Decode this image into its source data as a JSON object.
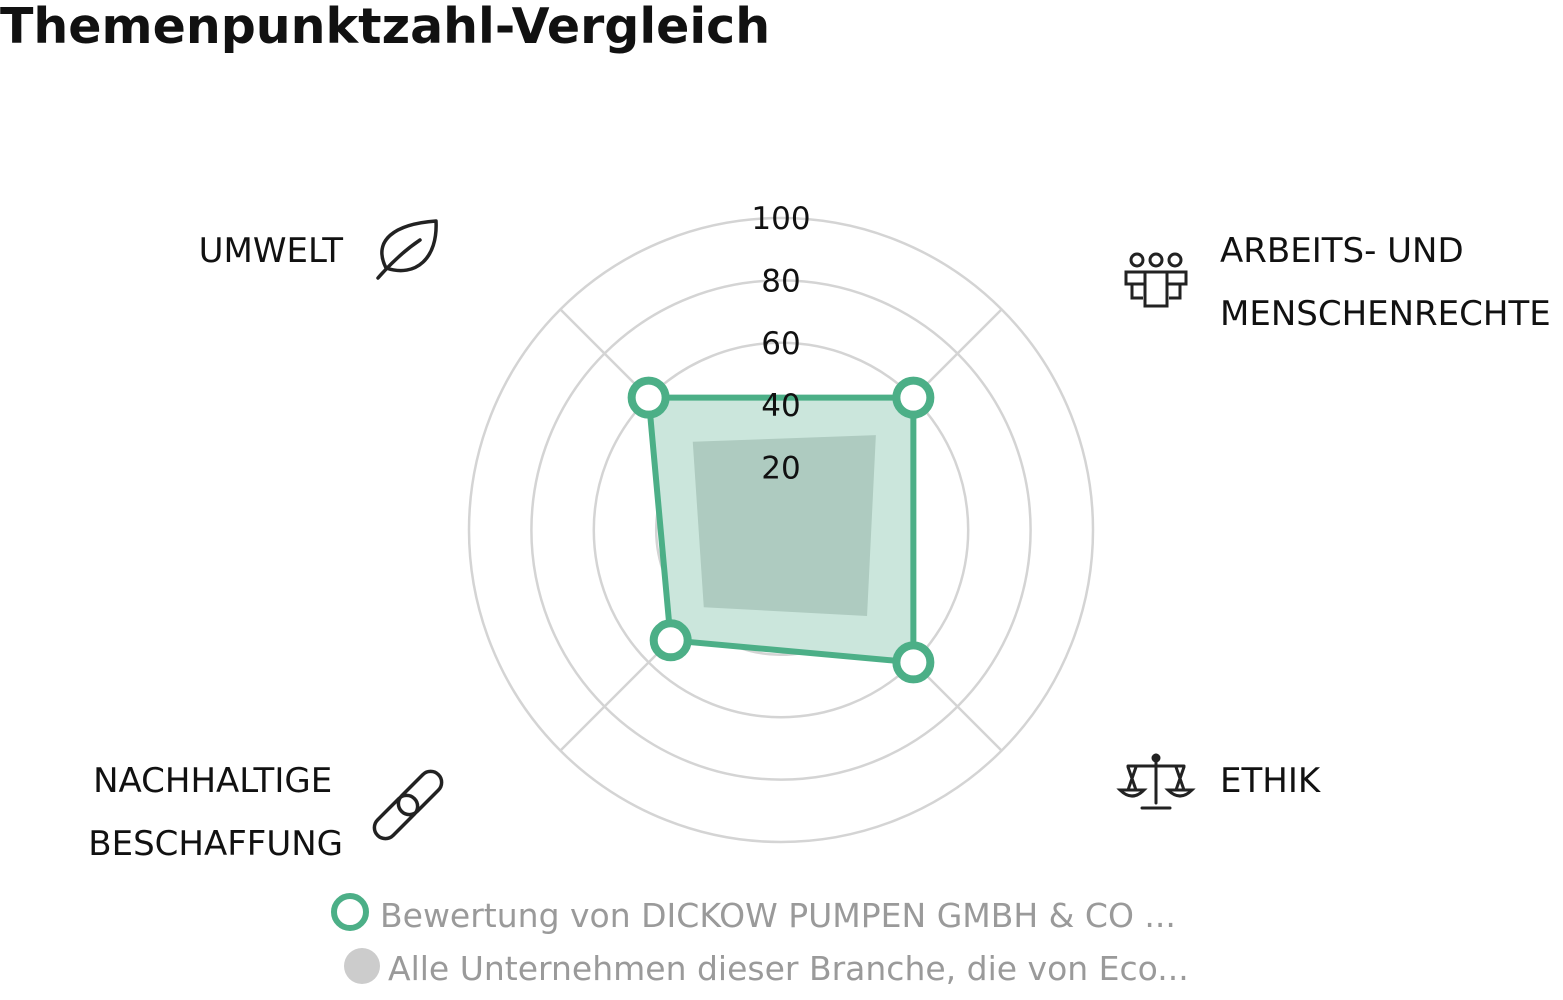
{
  "title": "Themenpunktzahl-Vergleich",
  "colors": {
    "company_line": "#4caf87",
    "company_fill": "#cbe6dc",
    "industry_fill": "#aecbc0",
    "grid": "#d4d4d4",
    "legend_text": "#9a9a9a",
    "legend_gray_marker": "#cccccc"
  },
  "categories": [
    {
      "label_lines": [
        "UMWELT"
      ],
      "icon": "leaf-icon"
    },
    {
      "label_lines": [
        "ARBEITS- UND",
        "MENSCHENRECHTE"
      ],
      "icon": "people-icon"
    },
    {
      "label_lines": [
        "ETHIK"
      ],
      "icon": "scale-icon"
    },
    {
      "label_lines": [
        "NACHHALTIGE",
        "BESCHAFFUNG"
      ],
      "icon": "chain-link-icon"
    }
  ],
  "chart_data": {
    "type": "radar",
    "title": "Themenpunktzahl-Vergleich",
    "categories": [
      "UMWELT",
      "ARBEITS- UND MENSCHENRECHTE",
      "ETHIK",
      "NACHHALTIGE BESCHAFFUNG"
    ],
    "r_range": [
      0,
      100
    ],
    "ticks": [
      "20",
      "40",
      "60",
      "80",
      "100"
    ],
    "grid": true,
    "legend_position": "bottom",
    "series": [
      {
        "name": "Bewertung von DICKOW PUMPEN GMBH & CO ...",
        "values": [
          60,
          60,
          60,
          50
        ]
      },
      {
        "name": "Alle Unternehmen dieser Branche, die von Eco...",
        "values": [
          40,
          43,
          39,
          35
        ]
      }
    ]
  }
}
